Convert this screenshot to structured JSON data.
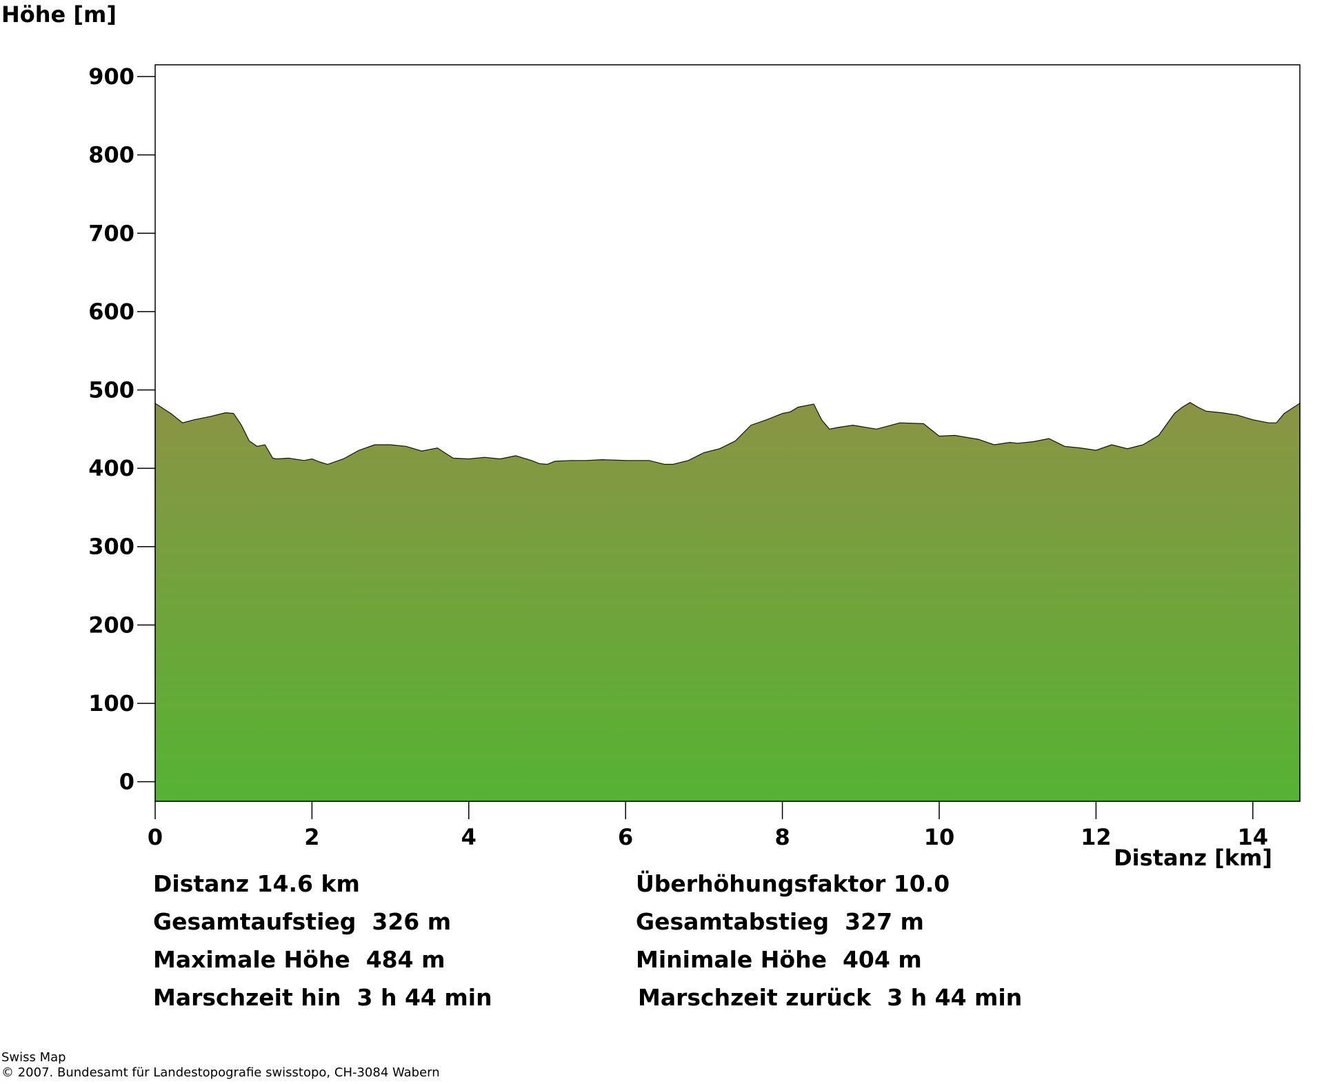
{
  "chart_data": {
    "type": "area",
    "ylabel": "Höhe [m]",
    "xlabel": "Distanz [km]",
    "xlim": [
      0,
      14.6
    ],
    "ylim": [
      -25,
      915
    ],
    "y_ticks": [
      "0",
      "100",
      "200",
      "300",
      "400",
      "500",
      "600",
      "700",
      "800",
      "900"
    ],
    "x_ticks": [
      "0",
      "2",
      "4",
      "6",
      "8",
      "10",
      "12",
      "14"
    ],
    "fill_colors": {
      "top": "#8b9444",
      "bottom": "#55b333"
    },
    "series": [
      {
        "x": [
          0,
          0.2,
          0.35,
          0.5,
          0.7,
          0.9,
          1.0,
          1.1,
          1.2,
          1.3,
          1.4,
          1.5,
          1.55,
          1.7,
          1.9,
          2.0,
          2.1,
          2.2,
          2.4,
          2.6,
          2.8,
          3.0,
          3.2,
          3.4,
          3.6,
          3.8,
          4.0,
          4.2,
          4.4,
          4.6,
          4.8,
          4.9,
          5.0,
          5.1,
          5.3,
          5.5,
          5.7,
          6.0,
          6.3,
          6.5,
          6.6,
          6.8,
          7.0,
          7.2,
          7.4,
          7.6,
          7.8,
          8.0,
          8.1,
          8.2,
          8.4,
          8.5,
          8.6,
          8.7,
          8.9,
          9.2,
          9.5,
          9.8,
          10.0,
          10.2,
          10.5,
          10.7,
          10.9,
          11.0,
          11.2,
          11.4,
          11.6,
          11.8,
          12.0,
          12.2,
          12.4,
          12.6,
          12.8,
          13.0,
          13.1,
          13.2,
          13.3,
          13.4,
          13.6,
          13.8,
          14.0,
          14.2,
          14.3,
          14.4,
          14.6
        ],
        "y": [
          483,
          470,
          458,
          462,
          466,
          471,
          470,
          455,
          435,
          428,
          430,
          413,
          412,
          413,
          410,
          412,
          408,
          405,
          412,
          423,
          430,
          430,
          428,
          422,
          426,
          413,
          412,
          414,
          412,
          416,
          410,
          406,
          405,
          409,
          410,
          410,
          411,
          410,
          410,
          405,
          405,
          410,
          420,
          425,
          435,
          455,
          462,
          470,
          472,
          478,
          482,
          462,
          450,
          452,
          455,
          450,
          458,
          457,
          441,
          442,
          437,
          430,
          433,
          432,
          434,
          438,
          428,
          426,
          423,
          430,
          425,
          430,
          442,
          470,
          478,
          484,
          478,
          473,
          471,
          468,
          462,
          458,
          458,
          470,
          483
        ]
      }
    ],
    "stats": [
      {
        "label": "Distanz",
        "value": "14.6 km"
      },
      {
        "label": "Überhöhungsfaktor",
        "value": "10.0"
      },
      {
        "label": "Gesamtaufstieg",
        "value": "326 m"
      },
      {
        "label": "Gesamtabstieg",
        "value": "327 m"
      },
      {
        "label": "Maximale Höhe",
        "value": "484 m"
      },
      {
        "label": "Minimale Höhe",
        "value": "404 m"
      },
      {
        "label": "Marschzeit hin",
        "value": "3 h 44 min"
      },
      {
        "label": "Marschzeit zurück",
        "value": "3 h 44 min"
      }
    ]
  },
  "footer": {
    "line1": "Swiss Map",
    "line2": "© 2007. Bundesamt für Landestopografie swisstopo, CH-3084 Wabern"
  }
}
